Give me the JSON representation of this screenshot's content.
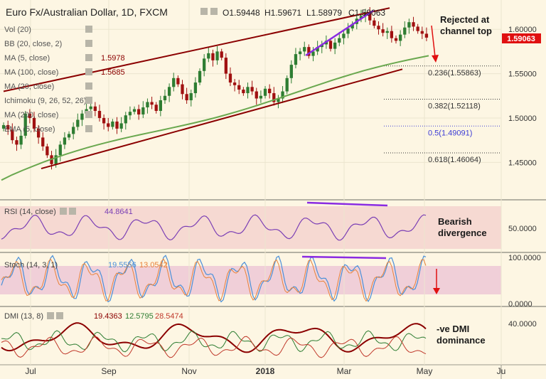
{
  "header": {
    "title": "Euro Fx/Australian Dollar, 1D, FXCM",
    "ohlc": {
      "o": "O1.59448",
      "h": "H1.59671",
      "l": "L1.58979",
      "c": "C1.59063"
    }
  },
  "indicators": [
    {
      "label": "Vol (20)",
      "value": ""
    },
    {
      "label": "BB (20, close, 2)",
      "value": ""
    },
    {
      "label": "MA (5, close)",
      "value": "1.5978"
    },
    {
      "label": "MA (100, close)",
      "value": "1.5685"
    },
    {
      "label": "MA (20, close)",
      "value": ""
    },
    {
      "label": "Ichimoku (9, 26, 52, 26)",
      "value": ""
    },
    {
      "label": "MA (200, close)",
      "value": ""
    },
    {
      "label": "EMA (5, close)",
      "value": ""
    }
  ],
  "price_badge": "1.59063",
  "annotations": {
    "rejected": [
      "Rejected at",
      "channel top"
    ],
    "bearish": [
      "Bearish",
      "divergence"
    ],
    "dmi": [
      "-ve DMI",
      "dominance"
    ]
  },
  "fib_levels": [
    {
      "label": "0.236(1.55863)",
      "value": 1.55863,
      "color": "#333333"
    },
    {
      "label": "0.382(1.52118)",
      "value": 1.52118,
      "color": "#333333"
    },
    {
      "label": "0.5(1.49091)",
      "value": 1.49091,
      "color": "#3b3bd6"
    },
    {
      "label": "0.618(1.46064)",
      "value": 1.46064,
      "color": "#333333"
    }
  ],
  "rsi": {
    "label": "RSI (14, close)",
    "value": "44.8641",
    "axis": [
      "50.0000"
    ]
  },
  "stoch": {
    "label": "Stoch (14, 3, 1)",
    "k": "19.5556",
    "d": "13.0542",
    "axis": [
      "100.0000",
      "0.0000"
    ]
  },
  "dmi_panel": {
    "label": "DMI (13, 8)",
    "v1": "19.4363",
    "v2": "12.5795",
    "v3": "28.5474",
    "axis": [
      "40.0000"
    ]
  },
  "colors": {
    "background": "#fdf6e3",
    "candle_up": "#2e7d32",
    "candle_down": "#a01010",
    "channel": "#8b0000",
    "ma100": "#6aa84f",
    "divergence": "#8a2be2",
    "rsi_line": "#7b3fb5",
    "stoch_k": "#4a90d9",
    "stoch_d": "#e8833a",
    "badge": "#e01010",
    "arrow": "#e01010"
  },
  "chart_data": {
    "type": "candlestick",
    "x_ticks": [
      "Jul",
      "Sep",
      "Nov",
      "2018",
      "Mar",
      "May",
      "Ju"
    ],
    "y_ticks": [
      "1.60000",
      "1.55000",
      "1.50000",
      "1.45000"
    ],
    "ylim": [
      1.415,
      1.625
    ],
    "close_path": [
      1.492,
      1.487,
      1.475,
      1.47,
      1.48,
      1.505,
      1.5,
      1.488,
      1.478,
      1.468,
      1.458,
      1.448,
      1.458,
      1.47,
      1.478,
      1.482,
      1.49,
      1.498,
      1.505,
      1.51,
      1.513,
      1.508,
      1.5,
      1.494,
      1.49,
      1.496,
      1.488,
      1.494,
      1.503,
      1.507,
      1.51,
      1.504,
      1.512,
      1.518,
      1.515,
      1.508,
      1.52,
      1.525,
      1.535,
      1.545,
      1.538,
      1.527,
      1.52,
      1.528,
      1.54,
      1.553,
      1.567,
      1.573,
      1.565,
      1.575,
      1.568,
      1.55,
      1.54,
      1.537,
      1.532,
      1.528,
      1.535,
      1.53,
      1.522,
      1.525,
      1.533,
      1.528,
      1.518,
      1.522,
      1.53,
      1.545,
      1.56,
      1.572,
      1.575,
      1.58,
      1.57,
      1.575,
      1.58,
      1.583,
      1.587,
      1.578,
      1.585,
      1.59,
      1.595,
      1.601,
      1.606,
      1.612,
      1.615,
      1.619,
      1.61,
      1.604,
      1.6,
      1.596,
      1.598,
      1.59,
      1.587,
      1.594,
      1.602,
      1.608,
      1.603,
      1.598,
      1.595,
      1.5906
    ],
    "ma100": {
      "start": 1.43,
      "end": 1.5685
    },
    "channel_upper": {
      "start": 1.53,
      "end": 1.624
    },
    "channel_lower": {
      "start": 1.443,
      "end": 1.555
    }
  }
}
